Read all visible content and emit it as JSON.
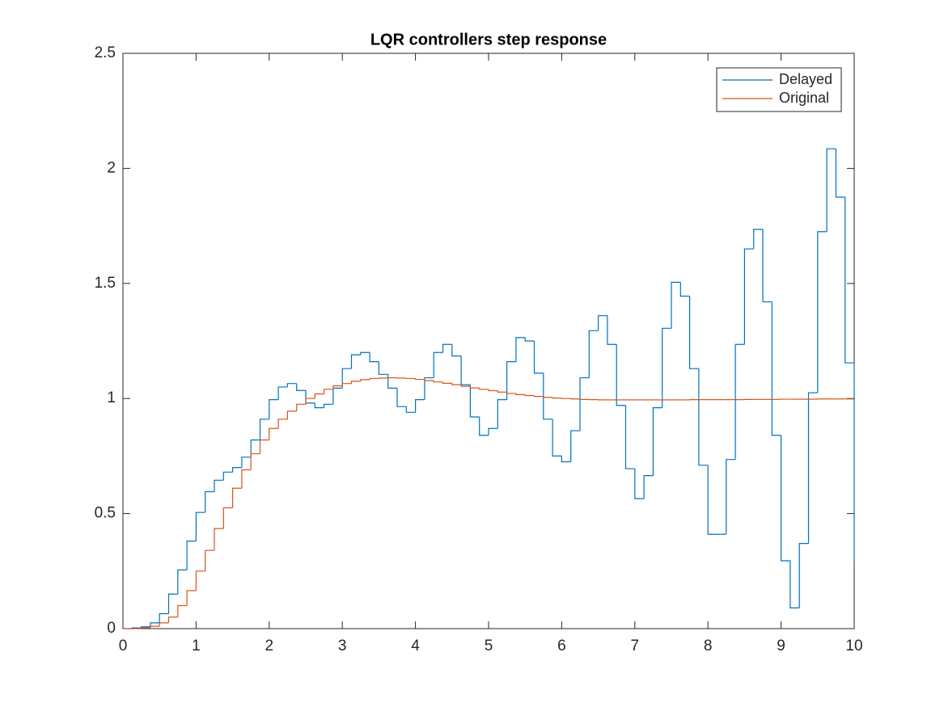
{
  "chart_data": {
    "type": "step",
    "title": "LQR controllers step response",
    "x": [
      0,
      0.125,
      0.25,
      0.375,
      0.5,
      0.625,
      0.75,
      0.875,
      1,
      1.125,
      1.25,
      1.375,
      1.5,
      1.625,
      1.75,
      1.875,
      2,
      2.125,
      2.25,
      2.375,
      2.5,
      2.625,
      2.75,
      2.875,
      3,
      3.125,
      3.25,
      3.375,
      3.5,
      3.625,
      3.75,
      3.875,
      4,
      4.125,
      4.25,
      4.375,
      4.5,
      4.625,
      4.75,
      4.875,
      5,
      5.125,
      5.25,
      5.375,
      5.5,
      5.625,
      5.75,
      5.875,
      6,
      6.125,
      6.25,
      6.375,
      6.5,
      6.625,
      6.75,
      6.875,
      7,
      7.125,
      7.25,
      7.375,
      7.5,
      7.625,
      7.75,
      7.875,
      8,
      8.125,
      8.25,
      8.375,
      8.5,
      8.625,
      8.75,
      8.875,
      9,
      9.125,
      9.25,
      9.375,
      9.5,
      9.625,
      9.75,
      9.875,
      10
    ],
    "series": [
      {
        "name": "Delayed",
        "color": "#0072bd",
        "values": [
          0,
          0.003,
          0.008,
          0.025,
          0.065,
          0.15,
          0.255,
          0.38,
          0.505,
          0.595,
          0.645,
          0.68,
          0.7,
          0.745,
          0.82,
          0.91,
          0.995,
          1.05,
          1.065,
          1.035,
          0.98,
          0.96,
          0.975,
          1.045,
          1.13,
          1.19,
          1.2,
          1.16,
          1.105,
          1.045,
          0.965,
          0.94,
          0.995,
          1.09,
          1.2,
          1.235,
          1.185,
          1.06,
          0.92,
          0.84,
          0.87,
          0.995,
          1.16,
          1.265,
          1.25,
          1.11,
          0.91,
          0.75,
          0.725,
          0.86,
          1.09,
          1.295,
          1.36,
          1.235,
          0.97,
          0.695,
          0.565,
          0.665,
          0.96,
          1.305,
          1.505,
          1.445,
          1.13,
          0.71,
          0.41,
          0.41,
          0.735,
          1.235,
          1.65,
          1.735,
          1.42,
          0.84,
          0.295,
          0.09,
          0.37,
          1.025,
          1.725,
          2.085,
          1.875,
          1.155,
          0.29
        ]
      },
      {
        "name": "Original",
        "color": "#d95319",
        "values": [
          0,
          0,
          0.003,
          0.01,
          0.025,
          0.05,
          0.1,
          0.165,
          0.25,
          0.34,
          0.435,
          0.525,
          0.61,
          0.69,
          0.76,
          0.82,
          0.87,
          0.91,
          0.945,
          0.975,
          1,
          1.02,
          1.04,
          1.055,
          1.065,
          1.075,
          1.082,
          1.087,
          1.089,
          1.09,
          1.089,
          1.087,
          1.083,
          1.078,
          1.072,
          1.066,
          1.06,
          1.053,
          1.046,
          1.04,
          1.034,
          1.028,
          1.022,
          1.017,
          1.013,
          1.009,
          1.005,
          1.002,
          1,
          0.998,
          0.996,
          0.995,
          0.994,
          0.994,
          0.994,
          0.994,
          0.994,
          0.994,
          0.994,
          0.994,
          0.994,
          0.994,
          0.995,
          0.995,
          0.995,
          0.995,
          0.995,
          0.995,
          0.996,
          0.996,
          0.996,
          0.996,
          0.997,
          0.997,
          0.997,
          0.997,
          0.998,
          0.998,
          0.998,
          0.998,
          0.998
        ]
      }
    ],
    "xlim": [
      0,
      10
    ],
    "xticks": [
      0,
      1,
      2,
      3,
      4,
      5,
      6,
      7,
      8,
      9,
      10
    ],
    "ylim": [
      0,
      2.5
    ],
    "yticks": [
      0,
      0.5,
      1,
      1.5,
      2,
      2.5
    ],
    "legend": "northeast"
  }
}
